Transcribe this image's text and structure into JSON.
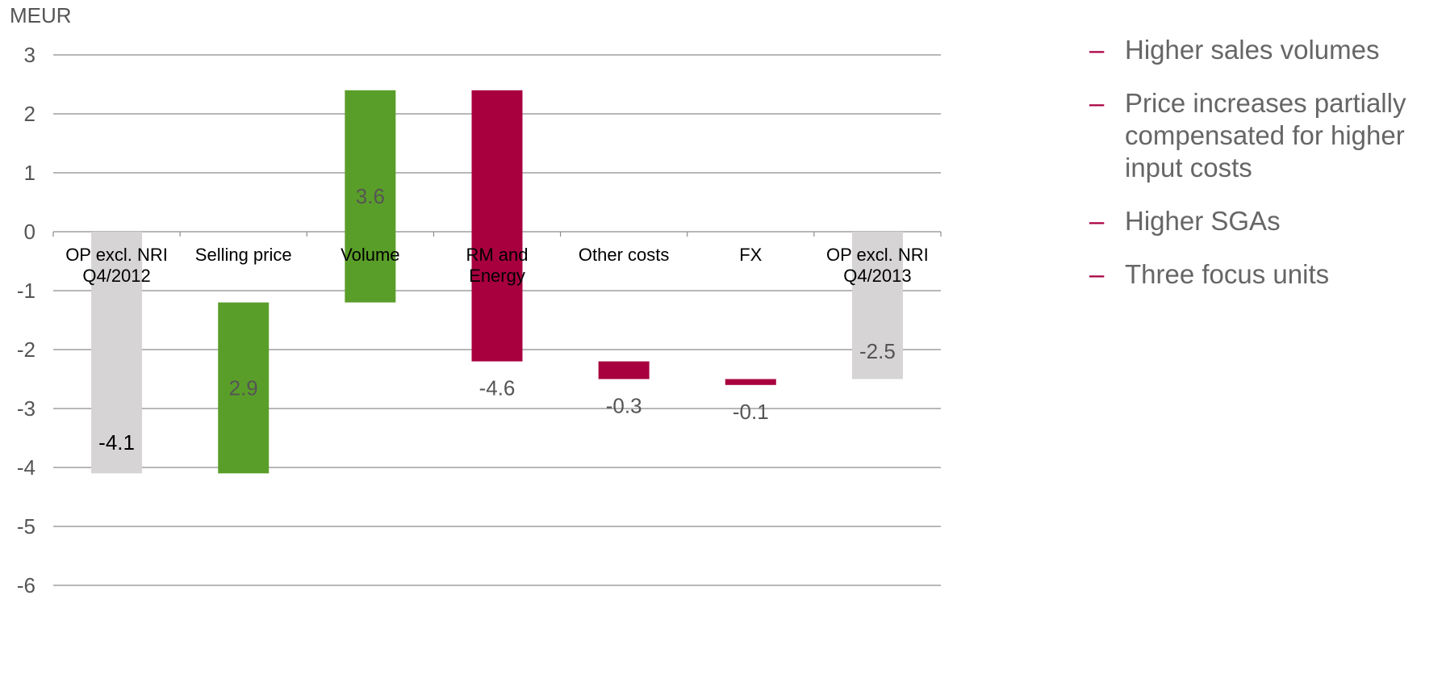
{
  "chart_data": {
    "type": "waterfall",
    "unit_label": "MEUR",
    "ylim": [
      -6,
      3
    ],
    "yticks": [
      3,
      2,
      1,
      0,
      -1,
      -2,
      -3,
      -4,
      -5,
      -6
    ],
    "grid": true,
    "categories": [
      "OP excl. NRI Q4/2012",
      "Selling price",
      "Volume",
      "RM and Energy",
      "Other costs",
      "FX",
      "OP excl. NRI Q4/2013"
    ],
    "category_lines": [
      [
        "OP excl. NRI",
        "Q4/2012"
      ],
      [
        "Selling price"
      ],
      [
        "Volume"
      ],
      [
        "RM and",
        "Energy"
      ],
      [
        "Other costs"
      ],
      [
        "FX"
      ],
      [
        "OP excl. NRI",
        "Q4/2013"
      ]
    ],
    "bars": [
      {
        "label": "-4.1",
        "start": 0,
        "end": -4.1,
        "kind": "total"
      },
      {
        "label": "2.9",
        "start": -4.1,
        "end": -1.2,
        "kind": "increase"
      },
      {
        "label": "3.6",
        "start": -1.2,
        "end": 2.4,
        "kind": "increase"
      },
      {
        "label": "-4.6",
        "start": 2.4,
        "end": -2.2,
        "kind": "decrease"
      },
      {
        "label": "-0.3",
        "start": -2.2,
        "end": -2.5,
        "kind": "decrease"
      },
      {
        "label": "-0.1",
        "start": -2.5,
        "end": -2.6,
        "kind": "decrease"
      },
      {
        "label": "-2.5",
        "start": 0,
        "end": -2.5,
        "kind": "total"
      }
    ],
    "colors": {
      "total": "#d6d4d5",
      "increase": "#5a9e2a",
      "decrease": "#a8003f",
      "grid": "#8c8c8c",
      "text": "#555555"
    }
  },
  "bullets": [
    "Higher sales volumes",
    "Price increases partially compensated for higher input costs",
    "Higher SGAs",
    "Three focus units"
  ],
  "bullet_marker": "–"
}
